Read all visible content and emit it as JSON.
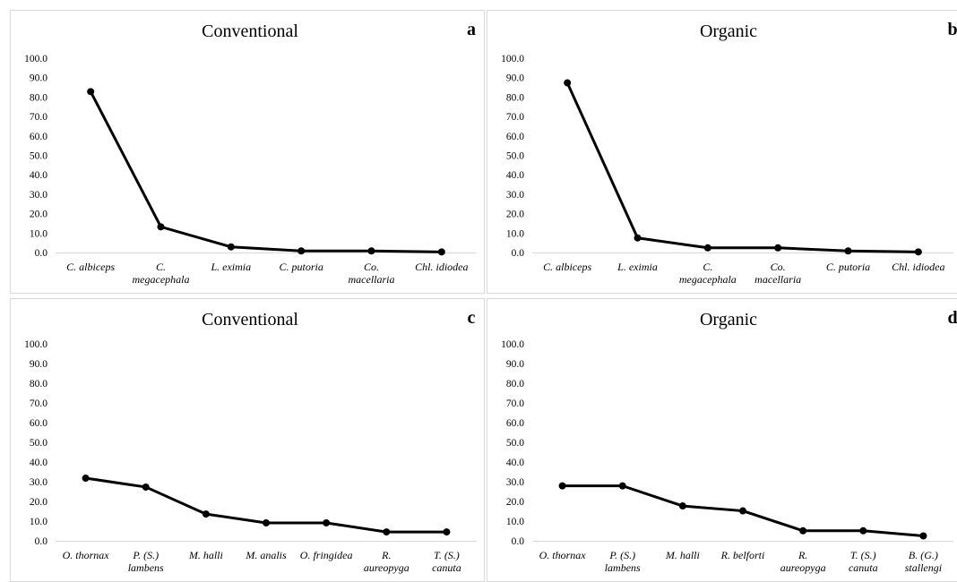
{
  "chart_data": [
    {
      "type": "line",
      "title": "Conventional",
      "panel_label": "a",
      "categories": [
        [
          "C. albiceps"
        ],
        [
          "C.",
          "megacephala"
        ],
        [
          "L. eximia"
        ],
        [
          "C. putoria"
        ],
        [
          "Co.",
          "macellaria"
        ],
        [
          "Chl. idiodea"
        ]
      ],
      "values": [
        82.8,
        13.2,
        2.9,
        0.8,
        0.8,
        0.3
      ],
      "y_ticks": [
        "0.0",
        "10.0",
        "20.0",
        "30.0",
        "40.0",
        "50.0",
        "60.0",
        "70.0",
        "80.0",
        "90.0",
        "100.0"
      ],
      "ylim": [
        0,
        100
      ],
      "color": "#000000"
    },
    {
      "type": "line",
      "title": "Organic",
      "panel_label": "b",
      "categories": [
        [
          "C. albiceps"
        ],
        [
          "L. eximia"
        ],
        [
          "C.",
          "megacephala"
        ],
        [
          "Co.",
          "macellaria"
        ],
        [
          "C. putoria"
        ],
        [
          "Chl. idiodea"
        ]
      ],
      "values": [
        87.3,
        7.5,
        2.4,
        2.4,
        0.8,
        0.3
      ],
      "y_ticks": [
        "0.0",
        "10.0",
        "20.0",
        "30.0",
        "40.0",
        "50.0",
        "60.0",
        "70.0",
        "80.0",
        "90.0",
        "100.0"
      ],
      "ylim": [
        0,
        100
      ],
      "color": "#000000"
    },
    {
      "type": "line",
      "title": "Conventional",
      "panel_label": "c",
      "categories": [
        [
          "O. thornax"
        ],
        [
          "P. (S.)",
          "lambens"
        ],
        [
          "M. halli"
        ],
        [
          "M. analis"
        ],
        [
          "O. fringidea"
        ],
        [
          "R.",
          "aureopyga"
        ],
        [
          "T. (S.)",
          "canuta"
        ]
      ],
      "values": [
        31.8,
        27.3,
        13.6,
        9.1,
        9.1,
        4.5,
        4.5
      ],
      "y_ticks": [
        "0.0",
        "10.0",
        "20.0",
        "30.0",
        "40.0",
        "50.0",
        "60.0",
        "70.0",
        "80.0",
        "90.0",
        "100.0"
      ],
      "ylim": [
        0,
        100
      ],
      "color": "#000000"
    },
    {
      "type": "line",
      "title": "Organic",
      "panel_label": "d",
      "categories": [
        [
          "O. thornax"
        ],
        [
          "P. (S.)",
          "lambens"
        ],
        [
          "M. halli"
        ],
        [
          "R. belforti"
        ],
        [
          "R.",
          "aureopyga"
        ],
        [
          "T. (S.)",
          "canuta"
        ],
        [
          "B. (G.)",
          "stallengi"
        ]
      ],
      "values": [
        27.9,
        27.9,
        17.7,
        15.2,
        5.1,
        5.1,
        2.5
      ],
      "y_ticks": [
        "0.0",
        "10.0",
        "20.0",
        "30.0",
        "40.0",
        "50.0",
        "60.0",
        "70.0",
        "80.0",
        "90.0",
        "100.0"
      ],
      "ylim": [
        0,
        100
      ],
      "color": "#000000"
    }
  ]
}
